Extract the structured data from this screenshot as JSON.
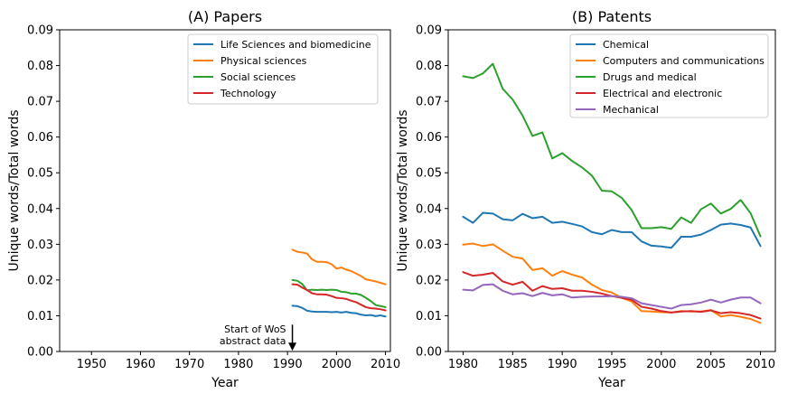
{
  "chart_data": [
    {
      "type": "line",
      "title": "(A) Papers",
      "xlabel": "Year",
      "ylabel": "Unique words/Total words",
      "xlim": [
        1943.5,
        2011
      ],
      "ylim": [
        0,
        0.09
      ],
      "xticks": [
        1950,
        1960,
        1970,
        1980,
        1990,
        2000,
        2010
      ],
      "yticks": [
        0.0,
        0.01,
        0.02,
        0.03,
        0.04,
        0.05,
        0.06,
        0.07,
        0.08,
        0.09
      ],
      "xtick_labels": [
        "1950",
        "1960",
        "1970",
        "1980",
        "1990",
        "2000",
        "2010"
      ],
      "ytick_labels": [
        "0.00",
        "0.01",
        "0.02",
        "0.03",
        "0.04",
        "0.05",
        "0.06",
        "0.07",
        "0.08",
        "0.09"
      ],
      "legend_position": "top-right",
      "x": [
        1991,
        1992,
        1993,
        1994,
        1995,
        1996,
        1997,
        1998,
        1999,
        2000,
        2001,
        2002,
        2003,
        2004,
        2005,
        2006,
        2007,
        2008,
        2009,
        2010
      ],
      "series": [
        {
          "name": "Life Sciences and biomedicine",
          "color": "#1f77b4",
          "values": [
            0.0128,
            0.0127,
            0.0122,
            0.0114,
            0.0112,
            0.0111,
            0.0111,
            0.0111,
            0.011,
            0.0111,
            0.0109,
            0.0111,
            0.0108,
            0.0107,
            0.0103,
            0.0101,
            0.0102,
            0.0099,
            0.0101,
            0.0098
          ]
        },
        {
          "name": "Physical sciences",
          "color": "#ff7f0e",
          "values": [
            0.0285,
            0.0279,
            0.0277,
            0.0274,
            0.0258,
            0.0251,
            0.0251,
            0.025,
            0.0244,
            0.0232,
            0.0235,
            0.0229,
            0.0225,
            0.0218,
            0.0211,
            0.0202,
            0.0199,
            0.0196,
            0.0192,
            0.0188
          ]
        },
        {
          "name": "Social sciences",
          "color": "#2ca02c",
          "values": [
            0.02,
            0.0198,
            0.0189,
            0.0171,
            0.0173,
            0.0172,
            0.0173,
            0.0172,
            0.0173,
            0.0172,
            0.0167,
            0.0166,
            0.0162,
            0.0162,
            0.0158,
            0.015,
            0.0141,
            0.013,
            0.0127,
            0.0124
          ]
        },
        {
          "name": "Technology",
          "color": "#d62728",
          "values": [
            0.0188,
            0.0187,
            0.0179,
            0.0172,
            0.0163,
            0.016,
            0.016,
            0.0159,
            0.0155,
            0.015,
            0.0149,
            0.0147,
            0.0142,
            0.0138,
            0.0131,
            0.0124,
            0.0121,
            0.012,
            0.0118,
            0.0115
          ]
        }
      ],
      "annotation": {
        "lines": [
          "Start of WoS",
          "abstract data"
        ],
        "x": 1991,
        "y_from": 0.0075,
        "y_to": 0.0002
      }
    },
    {
      "type": "line",
      "title": "(B) Patents",
      "xlabel": "Year",
      "ylabel": "Unique words/Total words",
      "xlim": [
        1978.5,
        2011.5
      ],
      "ylim": [
        0,
        0.09
      ],
      "xticks": [
        1980,
        1985,
        1990,
        1995,
        2000,
        2005,
        2010
      ],
      "yticks": [
        0.0,
        0.01,
        0.02,
        0.03,
        0.04,
        0.05,
        0.06,
        0.07,
        0.08,
        0.09
      ],
      "xtick_labels": [
        "1980",
        "1985",
        "1990",
        "1995",
        "2000",
        "2005",
        "2010"
      ],
      "ytick_labels": [
        "0.00",
        "0.01",
        "0.02",
        "0.03",
        "0.04",
        "0.05",
        "0.06",
        "0.07",
        "0.08",
        "0.09"
      ],
      "legend_position": "top-right",
      "x": [
        1980,
        1981,
        1982,
        1983,
        1984,
        1985,
        1986,
        1987,
        1988,
        1989,
        1990,
        1991,
        1992,
        1993,
        1994,
        1995,
        1996,
        1997,
        1998,
        1999,
        2000,
        2001,
        2002,
        2003,
        2004,
        2005,
        2006,
        2007,
        2008,
        2009,
        2010
      ],
      "series": [
        {
          "name": "Chemical",
          "color": "#1f77b4",
          "values": [
            0.0377,
            0.036,
            0.0388,
            0.0386,
            0.037,
            0.0367,
            0.0385,
            0.0373,
            0.0377,
            0.036,
            0.0363,
            0.0357,
            0.035,
            0.0334,
            0.0328,
            0.034,
            0.0334,
            0.0334,
            0.0308,
            0.0296,
            0.0294,
            0.029,
            0.0321,
            0.0321,
            0.0327,
            0.034,
            0.0355,
            0.0358,
            0.0354,
            0.0347,
            0.0295
          ]
        },
        {
          "name": "Computers and communications",
          "color": "#ff7f0e",
          "values": [
            0.0299,
            0.0302,
            0.0295,
            0.03,
            0.0282,
            0.0265,
            0.026,
            0.0228,
            0.0233,
            0.0212,
            0.0225,
            0.0215,
            0.0207,
            0.0187,
            0.0172,
            0.0165,
            0.015,
            0.014,
            0.0113,
            0.0112,
            0.011,
            0.0109,
            0.0113,
            0.0112,
            0.0112,
            0.0116,
            0.0098,
            0.0102,
            0.0097,
            0.0091,
            0.008
          ]
        },
        {
          "name": "Drugs and medical",
          "color": "#2ca02c",
          "values": [
            0.077,
            0.0765,
            0.0778,
            0.0805,
            0.0735,
            0.0705,
            0.066,
            0.0603,
            0.0613,
            0.054,
            0.0555,
            0.0533,
            0.0515,
            0.0492,
            0.045,
            0.0448,
            0.043,
            0.0396,
            0.0345,
            0.0345,
            0.0348,
            0.0343,
            0.0375,
            0.036,
            0.0398,
            0.0414,
            0.0386,
            0.0399,
            0.0424,
            0.0387,
            0.0322
          ]
        },
        {
          "name": "Electrical and electronic",
          "color": "#d62728",
          "values": [
            0.0222,
            0.0212,
            0.0215,
            0.022,
            0.0196,
            0.0187,
            0.0195,
            0.017,
            0.0183,
            0.0175,
            0.0177,
            0.017,
            0.017,
            0.0167,
            0.0162,
            0.0155,
            0.015,
            0.0145,
            0.0125,
            0.012,
            0.0113,
            0.0109,
            0.0112,
            0.0113,
            0.0111,
            0.0115,
            0.0107,
            0.011,
            0.0107,
            0.0102,
            0.0092
          ]
        },
        {
          "name": "Mechanical",
          "color": "#9467bd",
          "values": [
            0.0173,
            0.0171,
            0.0186,
            0.0188,
            0.017,
            0.016,
            0.0163,
            0.0155,
            0.0164,
            0.0157,
            0.016,
            0.0151,
            0.0153,
            0.0154,
            0.0154,
            0.0155,
            0.0153,
            0.0149,
            0.0135,
            0.013,
            0.0125,
            0.012,
            0.013,
            0.0132,
            0.0137,
            0.0145,
            0.0137,
            0.0145,
            0.0151,
            0.0151,
            0.0135
          ]
        }
      ]
    }
  ]
}
